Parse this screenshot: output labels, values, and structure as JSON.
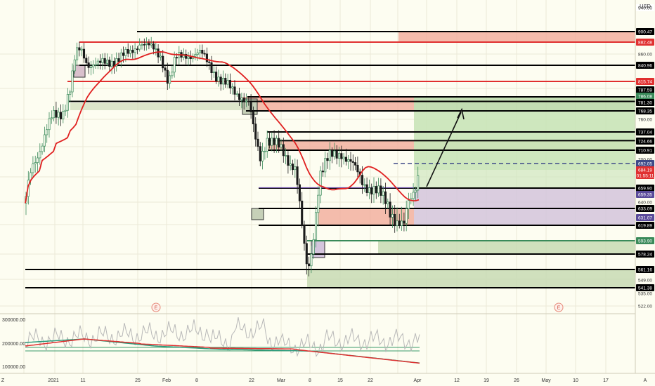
{
  "chart_data": [
    {
      "type": "candlestick",
      "currency_label": "USD",
      "y_axis_ticks": [
        "860.00",
        "800.00",
        "760.00",
        "720.00",
        "700.00",
        "680.00",
        "640.00",
        "626.00",
        "600.00",
        "549.00",
        "535.00",
        "522.00"
      ],
      "price_labels": [
        {
          "value": "940.00",
          "color": "#ffffff",
          "text_color": "#222222"
        },
        {
          "value": "900.47",
          "color": "#000000",
          "text_color": "#ffffff"
        },
        {
          "value": "882.48",
          "color": "#e03030",
          "text_color": "#ffffff"
        },
        {
          "value": "840.96",
          "color": "#000000",
          "text_color": "#ffffff"
        },
        {
          "value": "815.74",
          "color": "#e03030",
          "text_color": "#ffffff"
        },
        {
          "value": "787.59",
          "color": "#000000",
          "text_color": "#ffffff"
        },
        {
          "value": "786.08",
          "color": "#3a8a5a",
          "text_color": "#ffffff"
        },
        {
          "value": "781.30",
          "color": "#000000",
          "text_color": "#ffffff"
        },
        {
          "value": "768.35",
          "color": "#000000",
          "text_color": "#ffffff"
        },
        {
          "value": "737.04",
          "color": "#000000",
          "text_color": "#ffffff"
        },
        {
          "value": "724.66",
          "color": "#000000",
          "text_color": "#ffffff"
        },
        {
          "value": "710.91",
          "color": "#000000",
          "text_color": "#ffffff"
        },
        {
          "value": "692.05",
          "color": "#3e4a88",
          "text_color": "#ffffff"
        },
        {
          "value": "684.19",
          "color": "#e03030",
          "text_color": "#ffffff"
        },
        {
          "value": "01:55:11",
          "color": "#e03030",
          "text_color": "#ffffff"
        },
        {
          "value": "659.90",
          "color": "#000000",
          "text_color": "#ffffff"
        },
        {
          "value": "659.35",
          "color": "#5a4a9a",
          "text_color": "#ffffff"
        },
        {
          "value": "633.09",
          "color": "#000000",
          "text_color": "#ffffff"
        },
        {
          "value": "631.07",
          "color": "#5a4a9a",
          "text_color": "#ffffff"
        },
        {
          "value": "619.89",
          "color": "#000000",
          "text_color": "#ffffff"
        },
        {
          "value": "593.90",
          "color": "#3a8a5a",
          "text_color": "#ffffff"
        },
        {
          "value": "578.24",
          "color": "#000000",
          "text_color": "#ffffff"
        },
        {
          "value": "561.16",
          "color": "#000000",
          "text_color": "#ffffff"
        },
        {
          "value": "541.38",
          "color": "#000000",
          "text_color": "#ffffff"
        }
      ],
      "horizontal_levels": [
        {
          "price": 900.47,
          "color": "#000000"
        },
        {
          "price": 882.48,
          "color": "#e03030"
        },
        {
          "price": 840.96,
          "color": "#000000"
        },
        {
          "price": 815.74,
          "color": "#e03030"
        },
        {
          "price": 787.59,
          "color": "#000000"
        },
        {
          "price": 781.3,
          "color": "#000000"
        },
        {
          "price": 768.35,
          "color": "#000000"
        },
        {
          "price": 737.04,
          "color": "#000000"
        },
        {
          "price": 724.66,
          "color": "#000000"
        },
        {
          "price": 710.91,
          "color": "#000000"
        },
        {
          "price": 659.9,
          "color": "#000000"
        },
        {
          "price": 633.09,
          "color": "#000000"
        },
        {
          "price": 619.89,
          "color": "#000000"
        },
        {
          "price": 593.9,
          "color": "#3a8a5a"
        },
        {
          "price": 578.24,
          "color": "#000000"
        },
        {
          "price": 561.16,
          "color": "#000000"
        },
        {
          "price": 541.38,
          "color": "#000000"
        }
      ],
      "zones": [
        {
          "top": 900.47,
          "bottom": 882.48,
          "color": "#f2b0a0"
        },
        {
          "top": 787.59,
          "bottom": 768.35,
          "color": "#f2b0a0"
        },
        {
          "top": 787.59,
          "bottom": 768.35,
          "color": "#b8d8a8"
        },
        {
          "top": 724.66,
          "bottom": 710.91,
          "color": "#f2b0a0"
        },
        {
          "top": 724.66,
          "bottom": 710.91,
          "color": "#d6c8a4"
        },
        {
          "top": 659.9,
          "bottom": 619.89,
          "color": "#d4c4dc"
        },
        {
          "top": 633.09,
          "bottom": 619.89,
          "color": "#f2b0a0"
        },
        {
          "top": 593.9,
          "bottom": 578.24,
          "color": "#c8dab4"
        },
        {
          "top": 561.16,
          "bottom": 541.38,
          "color": "#c8dab4"
        }
      ],
      "projection": {
        "target": 768.35,
        "stop": 659.9,
        "entry": 684.19
      },
      "current_price": 684.19,
      "last_dashed_price": 692.05,
      "earnings_markers": [
        "E",
        "E"
      ],
      "moving_average": {
        "name": "",
        "color": "#e02020"
      }
    },
    {
      "type": "line",
      "y_axis_ticks": [
        "300000.00",
        "200000.00",
        "100000.00"
      ],
      "series": [
        {
          "color": "#e03030"
        },
        {
          "color": "#2a9a7a"
        },
        {
          "color": "#b8b8b8"
        }
      ]
    }
  ],
  "x_axis": {
    "labels": [
      "Z",
      "2021",
      "11",
      "25",
      "Feb",
      "8",
      "22",
      "Mar",
      "8",
      "15",
      "22",
      "Apr",
      "12",
      "19",
      "26",
      "May",
      "10",
      "17",
      "A"
    ]
  }
}
